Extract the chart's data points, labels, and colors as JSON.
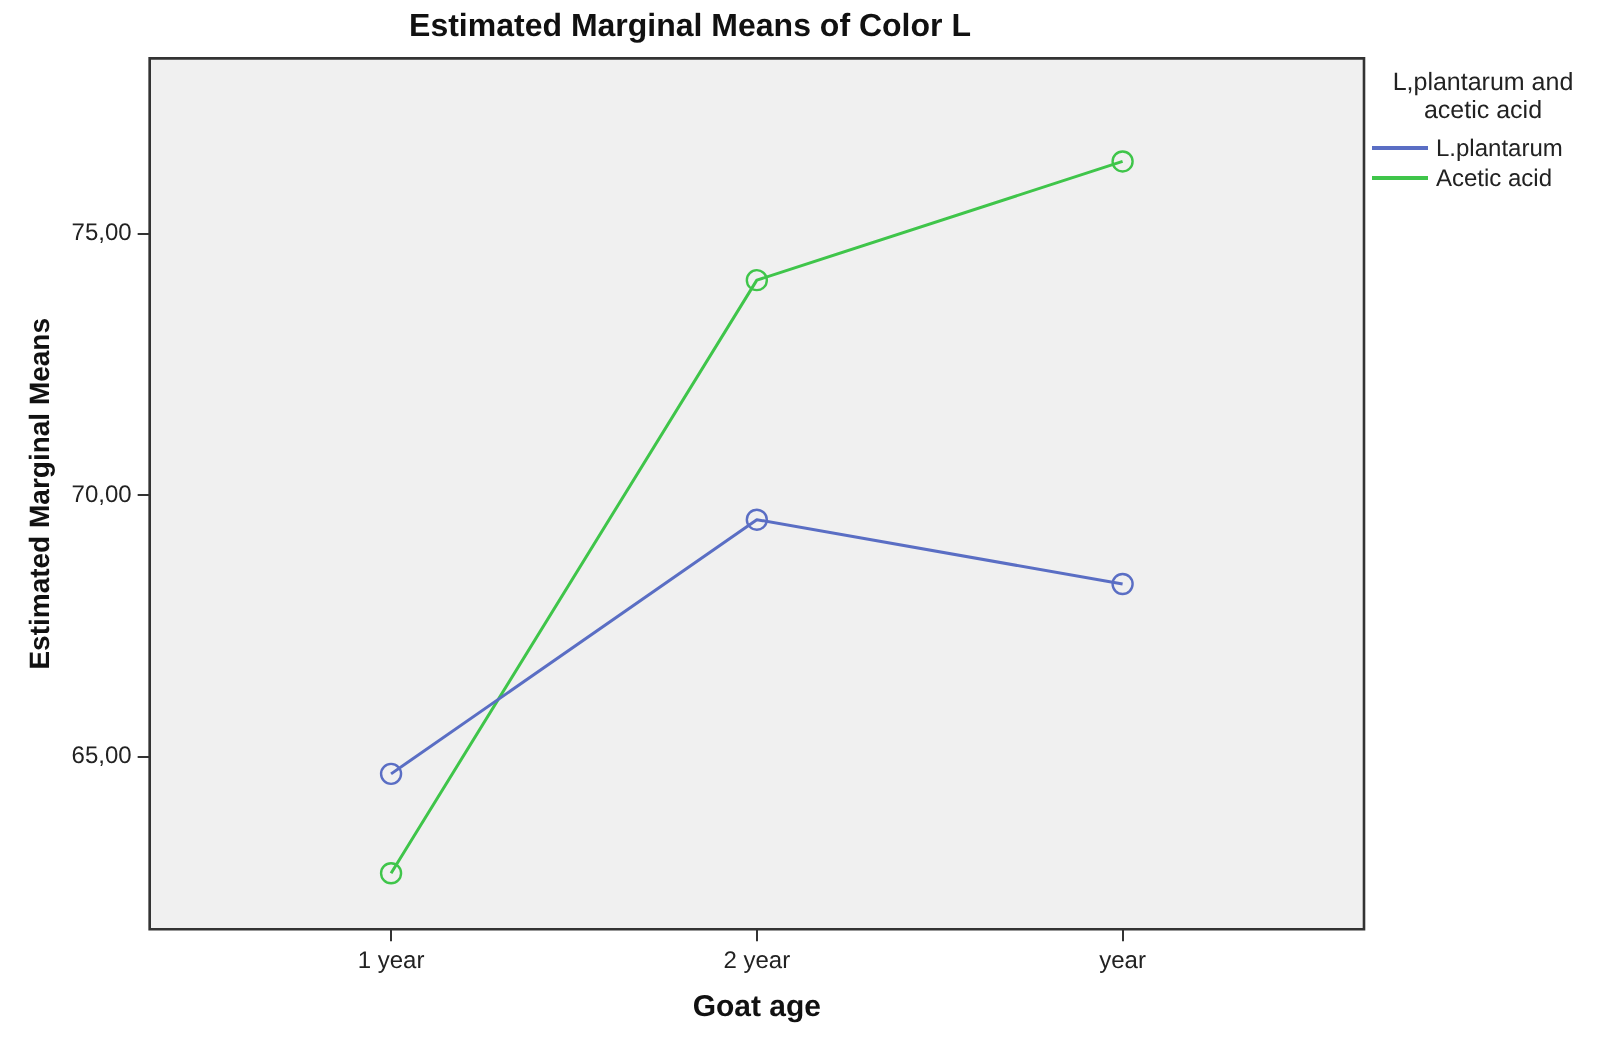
{
  "chart_data": {
    "type": "line",
    "title": "Estimated Marginal Means of Color L",
    "xlabel": "Goat age",
    "ylabel": "Estimated Marginal Means",
    "legend_title": "L,plantarum and acetic acid",
    "categories": [
      "1 year",
      "2 year",
      "year"
    ],
    "series": [
      {
        "name": "L.plantarum",
        "color": "#5a6ec4",
        "values": [
          64.67,
          69.53,
          68.3
        ]
      },
      {
        "name": "Acetic acid",
        "color": "#3fc54a",
        "values": [
          62.77,
          74.11,
          76.38
        ]
      }
    ],
    "ylim": [
      61.7,
      78.35
    ],
    "yticks": [
      {
        "value": 65,
        "label": "65,00"
      },
      {
        "value": 70,
        "label": "70,00"
      },
      {
        "value": 75,
        "label": "75,00"
      }
    ],
    "grid": false,
    "legend": "right",
    "marker": "circle",
    "line_style": "solid"
  }
}
